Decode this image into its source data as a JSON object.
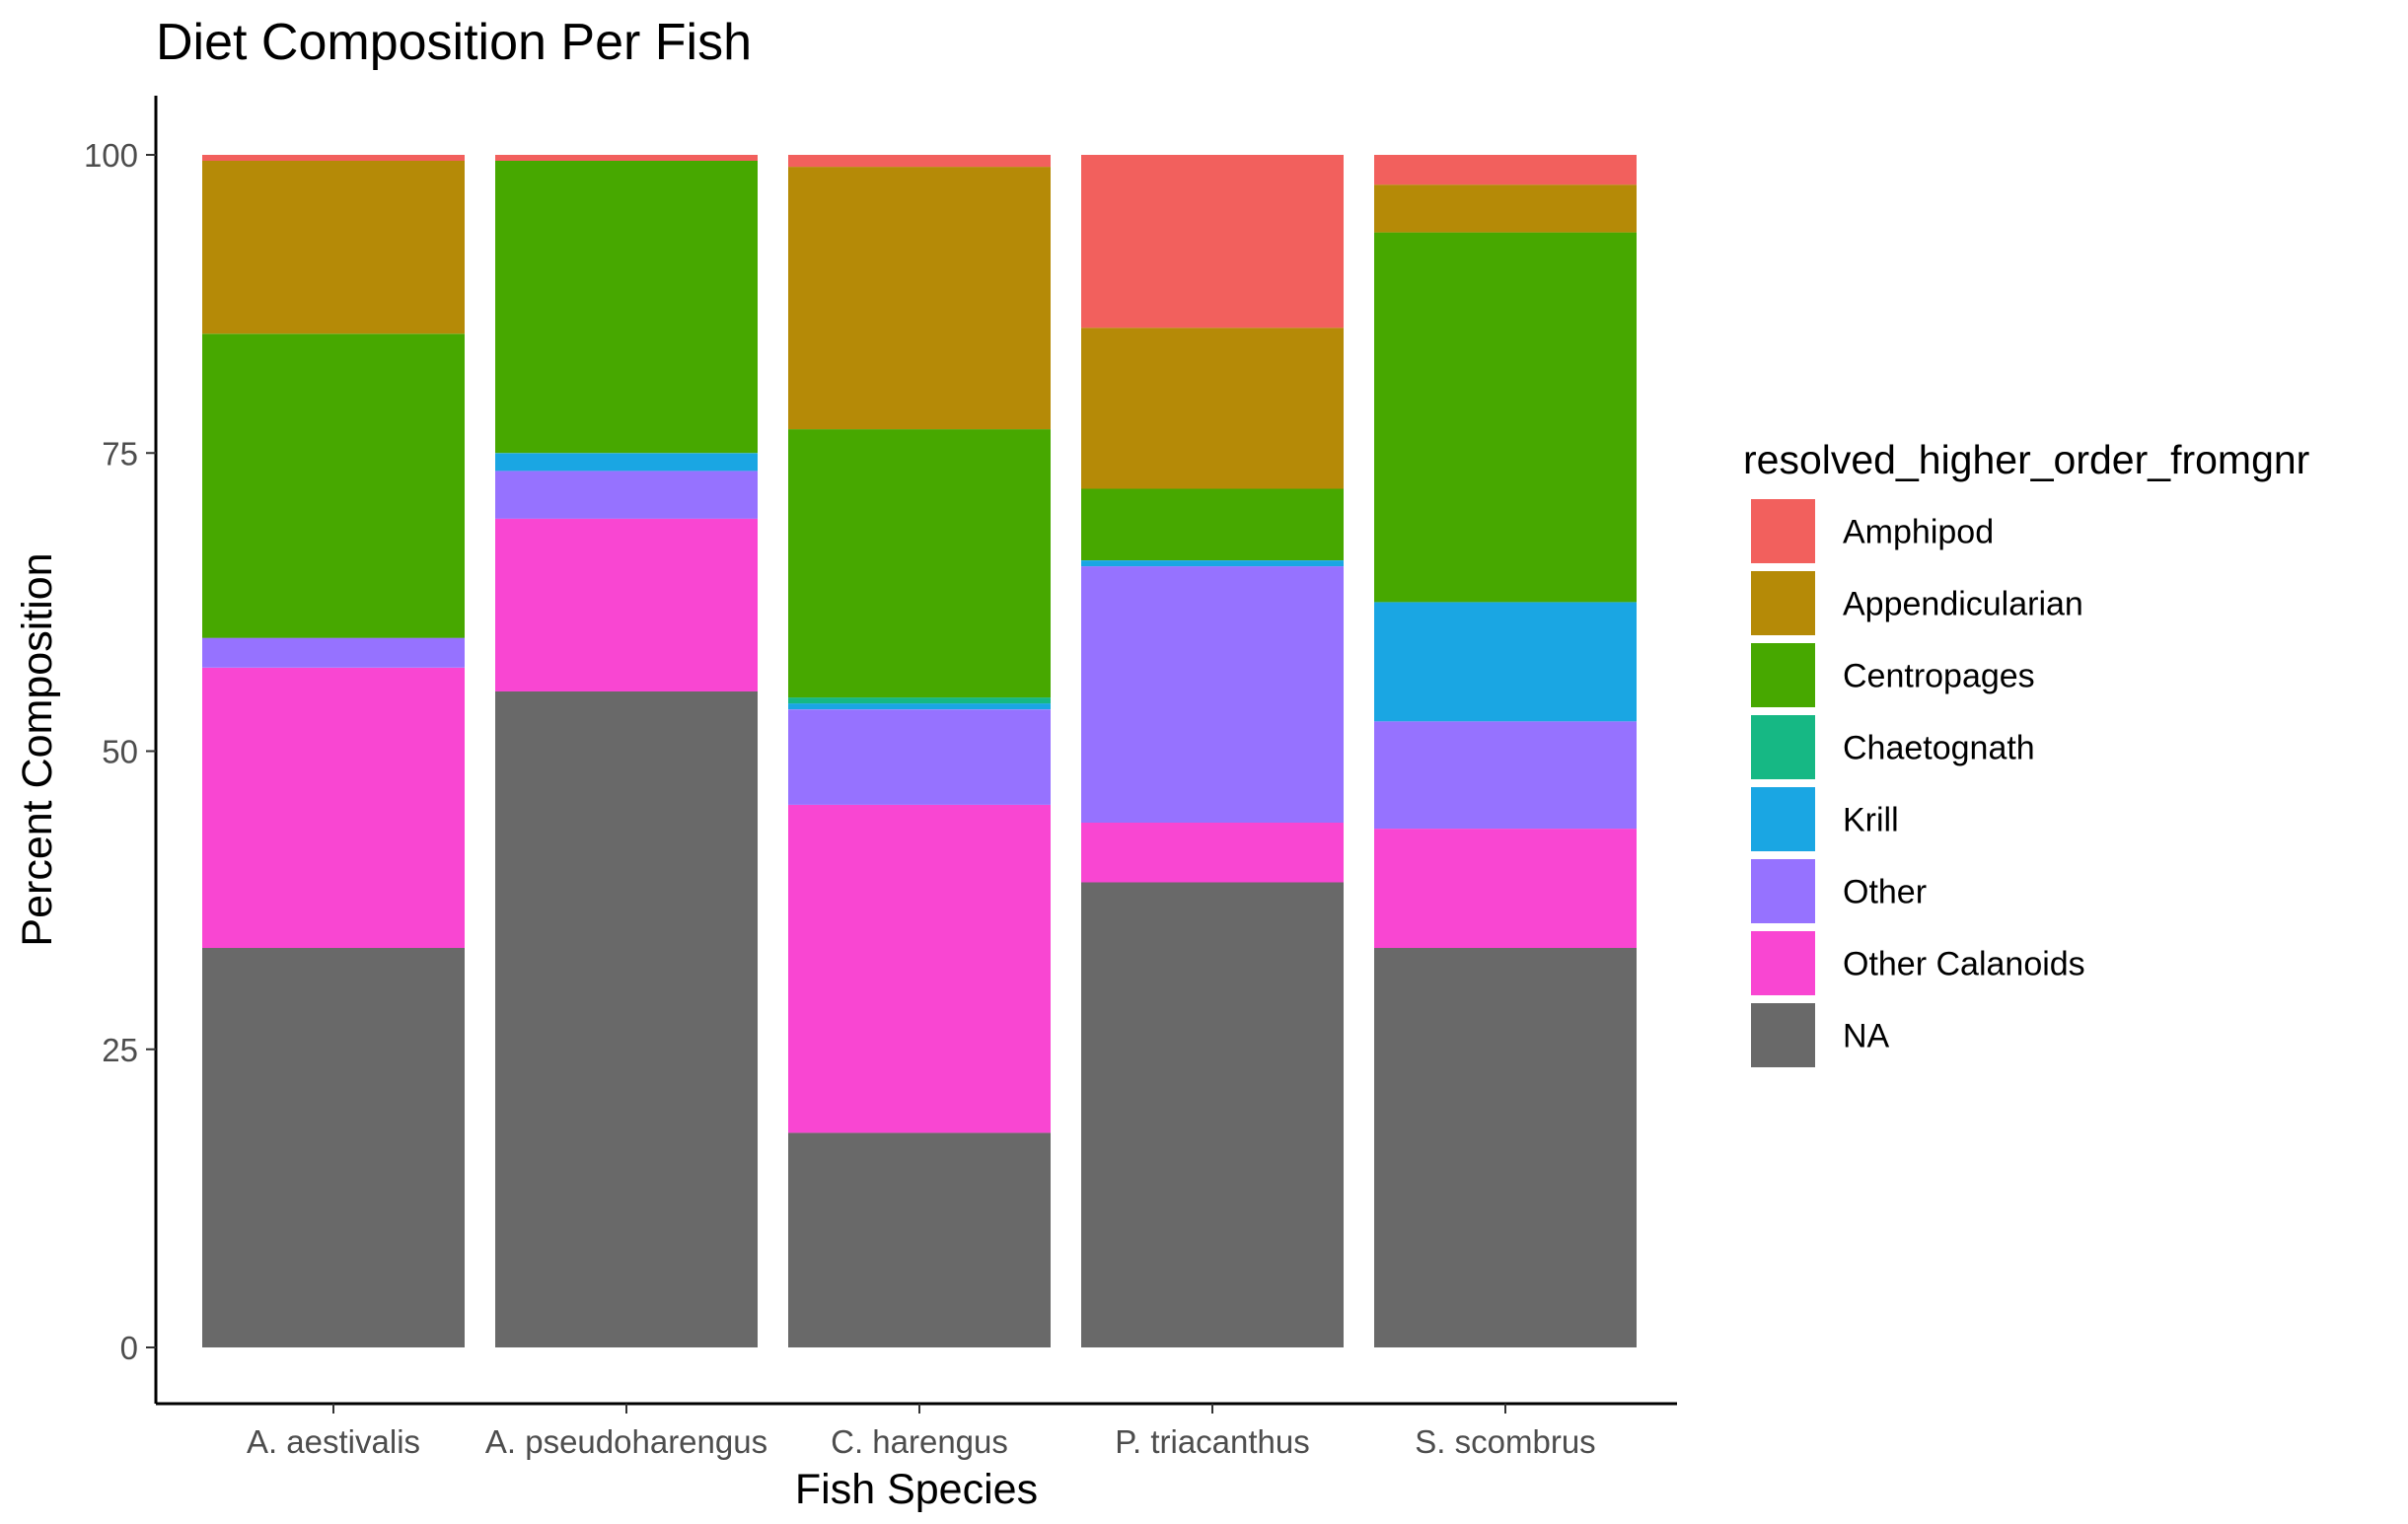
{
  "chart_data": {
    "type": "bar",
    "stacked": true,
    "title": "Diet Composition Per Fish",
    "xlabel": "Fish Species",
    "ylabel": "Percent Composition",
    "ylim": [
      0,
      100
    ],
    "yticks": [
      0,
      25,
      50,
      75,
      100
    ],
    "grid": false,
    "legend_position": "right",
    "legend_title": "resolved_higher_order_fromgnr",
    "categories": [
      "A. aestivalis",
      "A. pseudoharengus",
      "C. harengus",
      "P. triacanthus",
      "S. scombrus"
    ],
    "series": [
      {
        "name": "NA",
        "color": "#696969",
        "values": [
          33.5,
          55.0,
          18.0,
          39.0,
          33.5
        ]
      },
      {
        "name": "Other Calanoids",
        "color": "#F946D2",
        "values": [
          23.5,
          14.5,
          27.5,
          5.0,
          10.0
        ]
      },
      {
        "name": "Other",
        "color": "#9672FF",
        "values": [
          2.5,
          4.0,
          8.0,
          21.5,
          9.0
        ]
      },
      {
        "name": "Krill",
        "color": "#1AA6E3",
        "values": [
          0.0,
          1.5,
          0.5,
          0.5,
          10.0
        ]
      },
      {
        "name": "Chaetognath",
        "color": "#16B884",
        "values": [
          0.0,
          0.0,
          0.5,
          0.0,
          0.0
        ]
      },
      {
        "name": "Centropages",
        "color": "#47A800",
        "values": [
          25.5,
          24.5,
          22.5,
          6.0,
          31.0
        ]
      },
      {
        "name": "Appendicularian",
        "color": "#B58A07",
        "values": [
          14.5,
          0.0,
          22.0,
          13.5,
          4.0
        ]
      },
      {
        "name": "Amphipod",
        "color": "#F2605D",
        "values": [
          0.5,
          0.5,
          1.0,
          14.5,
          2.5
        ]
      }
    ],
    "legend_order": [
      "Amphipod",
      "Appendicularian",
      "Centropages",
      "Chaetognath",
      "Krill",
      "Other",
      "Other Calanoids",
      "NA"
    ]
  }
}
